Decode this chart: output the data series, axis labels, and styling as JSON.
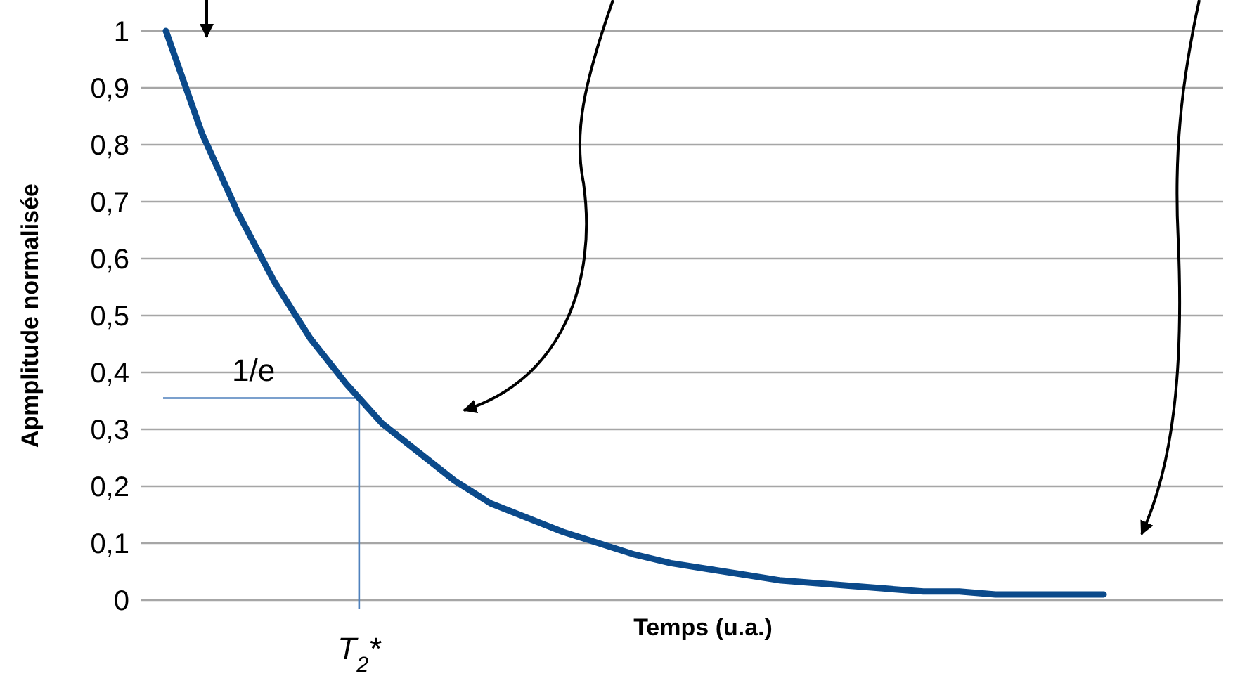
{
  "chart_data": {
    "type": "line",
    "xlabel": "Temps (u.a.)",
    "ylabel": "Apmplitude normalisée",
    "categories": [
      null,
      null,
      null,
      null,
      null,
      null,
      null,
      null,
      null,
      null,
      null,
      null,
      null,
      null,
      null,
      null,
      null,
      null,
      null,
      null,
      null,
      null,
      null,
      null,
      null,
      null,
      null,
      null,
      null,
      null
    ],
    "series": [
      {
        "color": "#0b4a8b",
        "values": [
          1,
          0.82,
          0.68,
          0.56,
          0.46,
          0.38,
          0.31,
          0.26,
          0.21,
          0.17,
          0.145,
          0.12,
          0.1,
          0.08,
          0.065,
          0.055,
          0.045,
          0.035,
          0.03,
          0.025,
          0.02,
          0.015,
          0.015,
          0.01,
          0.01,
          0.01,
          0.01,
          null,
          null,
          null
        ]
      }
    ],
    "ylim": [
      0,
      1
    ],
    "yticks": [
      0,
      {
        "value": 0.1,
        "label": "0,1"
      },
      {
        "value": 0.2,
        "label": "0,2"
      },
      {
        "value": 0.3,
        "label": "0,3"
      },
      {
        "value": 0.4,
        "label": "0,4"
      },
      {
        "value": 0.5,
        "label": "0,5"
      },
      {
        "value": 0.6,
        "label": "0,6"
      },
      {
        "value": 0.7,
        "label": "0,7"
      },
      {
        "value": 0.8,
        "label": "0,8"
      },
      {
        "value": 0.9,
        "label": "0,9"
      },
      1
    ],
    "grid": "y",
    "marker": "none",
    "ref_lines": [
      {
        "axis": "y",
        "value": 0.355,
        "label": "1/e",
        "color": "#4f81bd"
      }
    ],
    "annotations": [
      "T$_{2}$*"
    ]
  }
}
